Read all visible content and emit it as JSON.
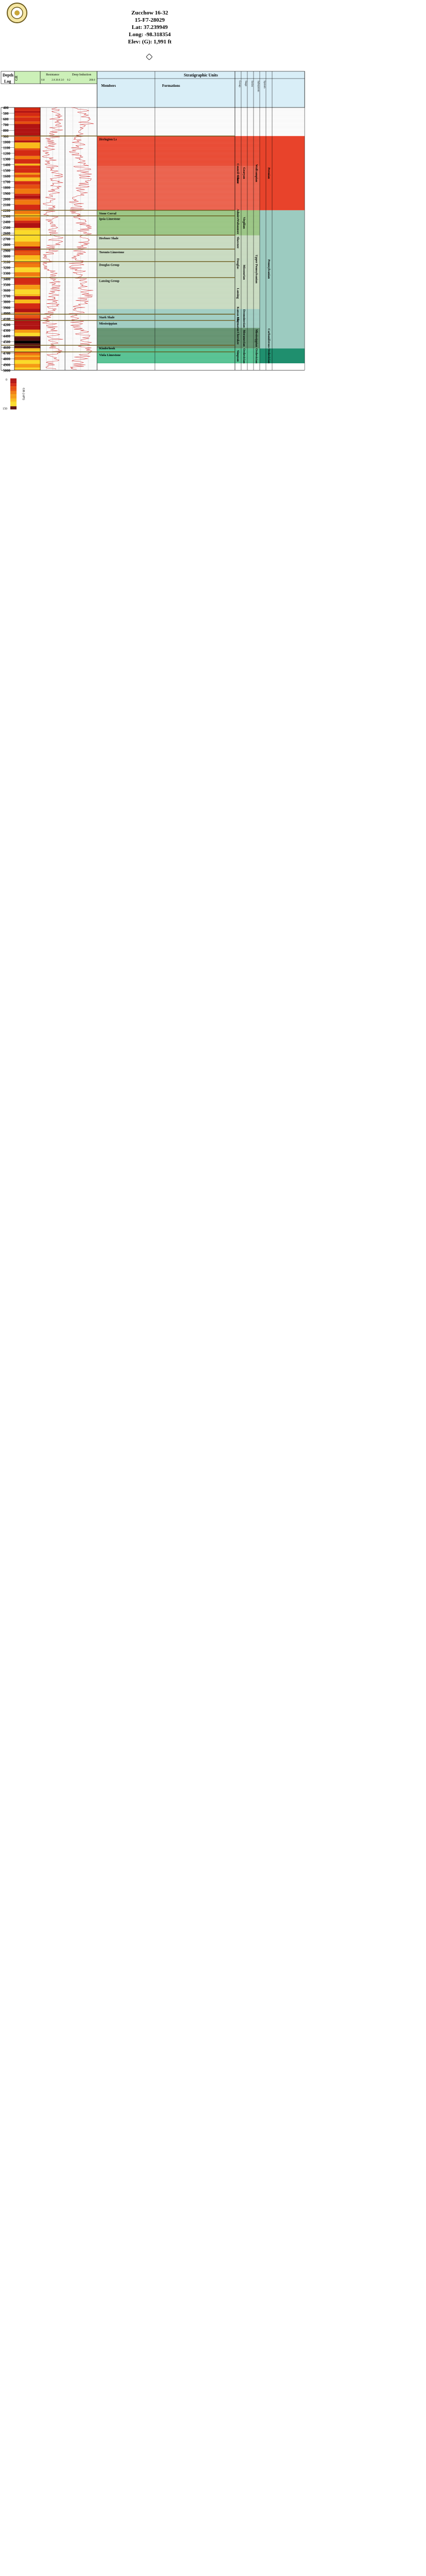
{
  "header": {
    "lines": [
      "Zucchow 16-32",
      "15-F7-28029",
      "Lat: 37.239949",
      "Long: -98.318354",
      "Elev: (G): 1,991 ft"
    ]
  },
  "colors": {
    "track_bg": "#ffffff",
    "curve": "#cc2222",
    "header_green": "#ccf0b8",
    "header_blue": "#d9eef7",
    "permian_red": "#e8432b",
    "wolfcampian": "#96c37f",
    "penn_green": "#c6d9be",
    "miss_teal": "#9ccbc0",
    "miss_dark": "#5e8f6b",
    "ordo": "#4fbf8e",
    "ordo_dark": "#1f8f6e"
  },
  "columns": {
    "depth": "Depth",
    "log": "Log",
    "gr": "GR",
    "resistance": "Resistance",
    "resistance_scale": [
      "0.8",
      "2.0 20.0 2.0"
    ],
    "induction": "Deep Induction",
    "induction_scale": [
      "0.2",
      "200.0"
    ],
    "strat_title": "Stratigraphic Units",
    "members": "Members",
    "formations": "Formations",
    "groups": [
      "Group",
      "Stage",
      "Series",
      "Subsystem",
      "System"
    ]
  },
  "depths": [
    "400",
    "500",
    "600",
    "700",
    "800",
    "900",
    "1000",
    "1100",
    "1200",
    "1300",
    "1400",
    "1500",
    "1600",
    "1700",
    "1800",
    "1900",
    "2000",
    "2100",
    "2200",
    "2300",
    "2400",
    "2500",
    "2600",
    "2700",
    "2800",
    "2900",
    "3000",
    "3100",
    "3200",
    "3300",
    "3400",
    "3500",
    "3600",
    "3700",
    "3800",
    "3900",
    "4000",
    "4100",
    "4200",
    "4300",
    "4400",
    "4500",
    "4600",
    "4700",
    "4800",
    "4900",
    "5000"
  ],
  "members": [
    {
      "depth": 900,
      "label": "Herington Ls"
    },
    {
      "depth": 2200,
      "label": "Stone Corral"
    },
    {
      "depth": 2298,
      "label": "Ipsia Limestone"
    },
    {
      "depth": 2636,
      "label": "Heebner Shale"
    },
    {
      "depth": 2880,
      "label": "Toronto Limestone"
    },
    {
      "depth": 3100,
      "label": "Douglas Group"
    },
    {
      "depth": 3380,
      "label": "Lansing Group"
    },
    {
      "depth": 4020,
      "label": "Stark Shale"
    },
    {
      "depth": 4130,
      "label": "Mississippian"
    },
    {
      "depth": 4565,
      "label": "Kinderhook"
    },
    {
      "depth": 4680,
      "label": "Viola Limestone"
    }
  ],
  "formations": [
    {
      "top": 900,
      "bottom": 2200,
      "label": "Council Grove"
    },
    {
      "top": 1430,
      "bottom": 1900,
      "label": "Chase"
    },
    {
      "top": 2200,
      "bottom": 2330,
      "label": "Admire"
    },
    {
      "top": 2330,
      "bottom": 2640,
      "label": "Wabaunsee"
    },
    {
      "top": 2640,
      "bottom": 2890,
      "label": "Shawnee"
    },
    {
      "top": 2890,
      "bottom": 3380,
      "label": "Douglas"
    },
    {
      "top": 3380,
      "bottom": 3930,
      "label": "Lansing"
    },
    {
      "top": 3930,
      "bottom": 4130,
      "label": "Kansas City"
    },
    {
      "top": 4130,
      "bottom": 4260,
      "label": "Marmaton"
    },
    {
      "top": 4260,
      "bottom": 4620,
      "label": "Cherokee"
    },
    {
      "top": 4620,
      "bottom": 4880,
      "label": "Simpson"
    }
  ],
  "stages": [
    {
      "top": 900,
      "bottom": 2200,
      "label": "Gearyan"
    },
    {
      "top": 2200,
      "bottom": 2640,
      "label": "Virgilian"
    },
    {
      "top": 2640,
      "bottom": 3930,
      "label": "Missourian"
    },
    {
      "top": 3930,
      "bottom": 4260,
      "label": "Desmoinesian"
    },
    {
      "top": 4260,
      "bottom": 4620,
      "label": "Meramecian"
    },
    {
      "top": 4620,
      "bottom": 4880,
      "label": "Ordovician"
    }
  ],
  "series": [
    {
      "top": 900,
      "bottom": 2200,
      "label": "Wolfcampian"
    },
    {
      "top": 2200,
      "bottom": 4260,
      "label": "Upper Pennsylvanian"
    },
    {
      "top": 4260,
      "bottom": 4620,
      "label": "Mississippian"
    },
    {
      "top": 4620,
      "bottom": 4880,
      "label": "Ordovician"
    }
  ],
  "systems": [
    {
      "top": 900,
      "bottom": 2200,
      "label": "Permian"
    },
    {
      "top": 2200,
      "bottom": 4260,
      "label": "Pennsylvanian"
    },
    {
      "top": 4260,
      "bottom": 4620,
      "label": "Carboniferous"
    },
    {
      "top": 4620,
      "bottom": 4880,
      "label": "Ordovician"
    }
  ],
  "legend": {
    "top": "0",
    "bottom": "150",
    "unit": "GR (API)"
  }
}
